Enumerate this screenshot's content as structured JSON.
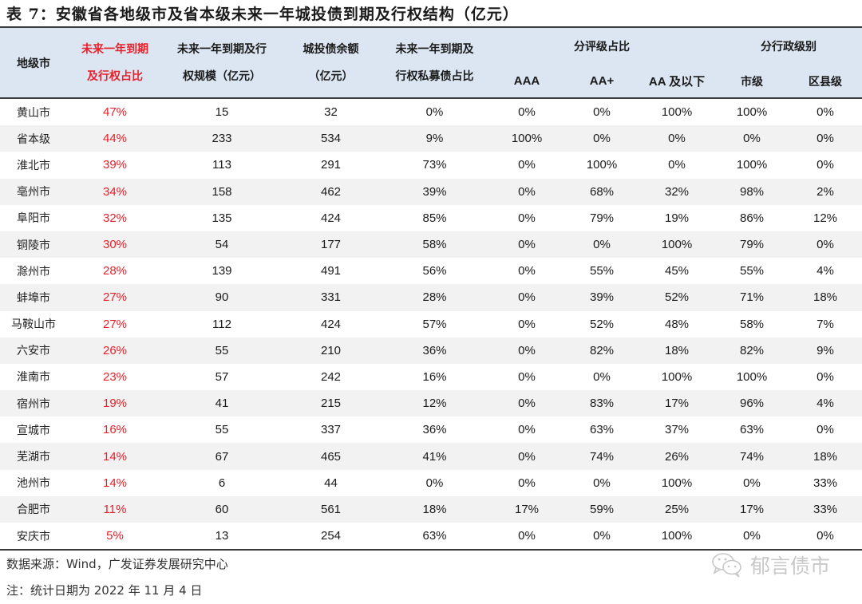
{
  "title": "表 7：安徽省各地级市及省本级未来一年城投债到期及行权结构（亿元）",
  "header": {
    "city": "地级市",
    "ratio_line1": "未来一年到期",
    "ratio_line2": "及行权占比",
    "scale_line1": "未来一年到期及行",
    "scale_line2": "权规模（亿元）",
    "balance_line1": "城投债余额",
    "balance_line2": "（亿元）",
    "private_line1": "未来一年到期及",
    "private_line2": "行权私募债占比",
    "rating_group": "分评级占比",
    "rating_cols": [
      "AAA",
      "AA+",
      "AA 及以下"
    ],
    "admin_group": "分行政级别",
    "admin_cols": [
      "市级",
      "区县级"
    ]
  },
  "rows": [
    {
      "city": "黄山市",
      "ratio": "47%",
      "scale": "15",
      "balance": "32",
      "private": "0%",
      "aaa": "0%",
      "aaplus": "0%",
      "aa_below": "100%",
      "city_level": "100%",
      "county_level": "0%"
    },
    {
      "city": "省本级",
      "ratio": "44%",
      "scale": "233",
      "balance": "534",
      "private": "9%",
      "aaa": "100%",
      "aaplus": "0%",
      "aa_below": "0%",
      "city_level": "0%",
      "county_level": "0%"
    },
    {
      "city": "淮北市",
      "ratio": "39%",
      "scale": "113",
      "balance": "291",
      "private": "73%",
      "aaa": "0%",
      "aaplus": "100%",
      "aa_below": "0%",
      "city_level": "100%",
      "county_level": "0%"
    },
    {
      "city": "亳州市",
      "ratio": "34%",
      "scale": "158",
      "balance": "462",
      "private": "39%",
      "aaa": "0%",
      "aaplus": "68%",
      "aa_below": "32%",
      "city_level": "98%",
      "county_level": "2%"
    },
    {
      "city": "阜阳市",
      "ratio": "32%",
      "scale": "135",
      "balance": "424",
      "private": "85%",
      "aaa": "0%",
      "aaplus": "79%",
      "aa_below": "19%",
      "city_level": "86%",
      "county_level": "12%"
    },
    {
      "city": "铜陵市",
      "ratio": "30%",
      "scale": "54",
      "balance": "177",
      "private": "58%",
      "aaa": "0%",
      "aaplus": "0%",
      "aa_below": "100%",
      "city_level": "79%",
      "county_level": "0%"
    },
    {
      "city": "滁州市",
      "ratio": "28%",
      "scale": "139",
      "balance": "491",
      "private": "56%",
      "aaa": "0%",
      "aaplus": "55%",
      "aa_below": "45%",
      "city_level": "55%",
      "county_level": "4%"
    },
    {
      "city": "蚌埠市",
      "ratio": "27%",
      "scale": "90",
      "balance": "331",
      "private": "28%",
      "aaa": "0%",
      "aaplus": "39%",
      "aa_below": "52%",
      "city_level": "71%",
      "county_level": "18%"
    },
    {
      "city": "马鞍山市",
      "ratio": "27%",
      "scale": "112",
      "balance": "424",
      "private": "57%",
      "aaa": "0%",
      "aaplus": "52%",
      "aa_below": "48%",
      "city_level": "58%",
      "county_level": "7%"
    },
    {
      "city": "六安市",
      "ratio": "26%",
      "scale": "55",
      "balance": "210",
      "private": "36%",
      "aaa": "0%",
      "aaplus": "82%",
      "aa_below": "18%",
      "city_level": "82%",
      "county_level": "9%"
    },
    {
      "city": "淮南市",
      "ratio": "23%",
      "scale": "57",
      "balance": "242",
      "private": "16%",
      "aaa": "0%",
      "aaplus": "0%",
      "aa_below": "100%",
      "city_level": "100%",
      "county_level": "0%"
    },
    {
      "city": "宿州市",
      "ratio": "19%",
      "scale": "41",
      "balance": "215",
      "private": "12%",
      "aaa": "0%",
      "aaplus": "83%",
      "aa_below": "17%",
      "city_level": "96%",
      "county_level": "4%"
    },
    {
      "city": "宣城市",
      "ratio": "16%",
      "scale": "55",
      "balance": "337",
      "private": "36%",
      "aaa": "0%",
      "aaplus": "63%",
      "aa_below": "37%",
      "city_level": "63%",
      "county_level": "0%"
    },
    {
      "city": "芜湖市",
      "ratio": "14%",
      "scale": "67",
      "balance": "465",
      "private": "41%",
      "aaa": "0%",
      "aaplus": "74%",
      "aa_below": "26%",
      "city_level": "74%",
      "county_level": "18%"
    },
    {
      "city": "池州市",
      "ratio": "14%",
      "scale": "6",
      "balance": "44",
      "private": "0%",
      "aaa": "0%",
      "aaplus": "0%",
      "aa_below": "100%",
      "city_level": "0%",
      "county_level": "33%"
    },
    {
      "city": "合肥市",
      "ratio": "11%",
      "scale": "60",
      "balance": "561",
      "private": "18%",
      "aaa": "17%",
      "aaplus": "59%",
      "aa_below": "25%",
      "city_level": "17%",
      "county_level": "33%"
    },
    {
      "city": "安庆市",
      "ratio": "5%",
      "scale": "13",
      "balance": "254",
      "private": "63%",
      "aaa": "0%",
      "aaplus": "0%",
      "aa_below": "100%",
      "city_level": "0%",
      "county_level": "0%"
    }
  ],
  "footnotes": {
    "source": "数据来源：Wind，广发证券发展研究中心",
    "note": "注：统计日期为 2022 年 11 月 4 日"
  },
  "watermark": {
    "icon": "wechat-icon",
    "text": "郁言债市"
  },
  "colors": {
    "header_bg": "#dce6f2",
    "accent_red": "#e8202a",
    "stripe": "#f2f2f2",
    "rule": "#3a3a3a"
  }
}
